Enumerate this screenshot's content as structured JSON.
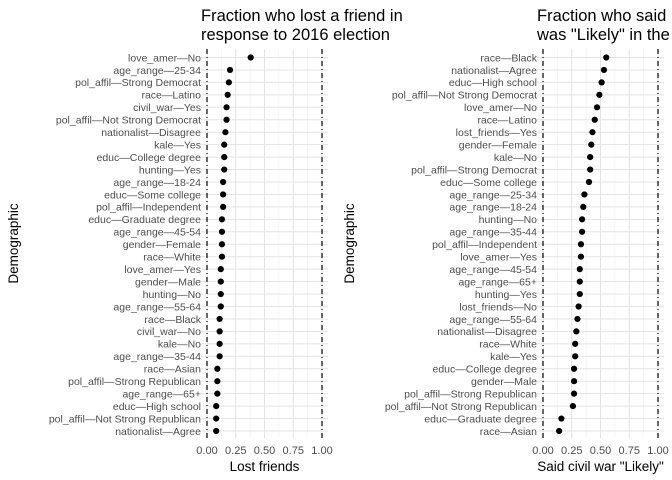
{
  "chart_data": [
    {
      "type": "scatter",
      "title_lines": [
        "Fraction who lost a friend in",
        "response to 2016 election"
      ],
      "xlabel": "Lost friends",
      "ylabel": "Demographic",
      "xlim": [
        0,
        1
      ],
      "xticks": [
        "0.00",
        "0.25",
        "0.50",
        "0.75",
        "1.00"
      ],
      "reference_lines": [
        0,
        1
      ],
      "grid": true,
      "categories": [
        "love_amer—No",
        "age_range—25-34",
        "pol_affil—Strong Democrat",
        "race—Latino",
        "civil_war—Yes",
        "pol_affil—Not Strong Democrat",
        "nationalist—Disagree",
        "kale—Yes",
        "educ—College degree",
        "hunting—Yes",
        "age_range—18-24",
        "educ—Some college",
        "pol_affil—Independent",
        "educ—Graduate degree",
        "age_range—45-54",
        "gender—Female",
        "race—White",
        "love_amer—Yes",
        "gender—Male",
        "hunting—No",
        "age_range—55-64",
        "race—Black",
        "civil_war—No",
        "kale—No",
        "age_range—35-44",
        "race—Asian",
        "pol_affil—Strong Republican",
        "age_range—65+",
        "educ—High school",
        "pol_affil—Not Strong Republican",
        "nationalist—Agree"
      ],
      "values": [
        0.38,
        0.2,
        0.19,
        0.18,
        0.17,
        0.17,
        0.16,
        0.15,
        0.15,
        0.15,
        0.14,
        0.14,
        0.14,
        0.13,
        0.13,
        0.13,
        0.13,
        0.12,
        0.12,
        0.12,
        0.12,
        0.11,
        0.11,
        0.11,
        0.11,
        0.09,
        0.09,
        0.09,
        0.08,
        0.08,
        0.08
      ]
    },
    {
      "type": "scatter",
      "title_lines": [
        "Fraction who said",
        "was \"Likely\" in the"
      ],
      "xlabel": "Said civil war \"Likely\"",
      "ylabel": "Demographic",
      "xlim": [
        0,
        1
      ],
      "xticks": [
        "0.00",
        "0.25",
        "0.50",
        "0.75",
        "1.00"
      ],
      "reference_lines": [
        0,
        1
      ],
      "grid": true,
      "categories": [
        "race—Black",
        "nationalist—Agree",
        "educ—High school",
        "pol_affil—Not Strong Democrat",
        "love_amer—No",
        "race—Latino",
        "lost_friends—Yes",
        "gender—Female",
        "kale—No",
        "pol_affil—Strong Democrat",
        "educ—Some college",
        "age_range—25-34",
        "age_range—18-24",
        "hunting—No",
        "age_range—35-44",
        "pol_affil—Independent",
        "love_amer—Yes",
        "age_range—45-54",
        "age_range—65+",
        "hunting—Yes",
        "lost_friends—No",
        "age_range—55-64",
        "nationalist—Disagree",
        "race—White",
        "kale—Yes",
        "educ—College degree",
        "gender—Male",
        "pol_affil—Strong Republican",
        "pol_affil—Not Strong Republican",
        "educ—Graduate degree",
        "race—Asian"
      ],
      "values": [
        0.55,
        0.53,
        0.51,
        0.49,
        0.47,
        0.45,
        0.43,
        0.42,
        0.41,
        0.41,
        0.4,
        0.36,
        0.35,
        0.34,
        0.34,
        0.33,
        0.33,
        0.32,
        0.32,
        0.32,
        0.31,
        0.3,
        0.29,
        0.28,
        0.28,
        0.27,
        0.27,
        0.27,
        0.26,
        0.16,
        0.14
      ]
    }
  ]
}
